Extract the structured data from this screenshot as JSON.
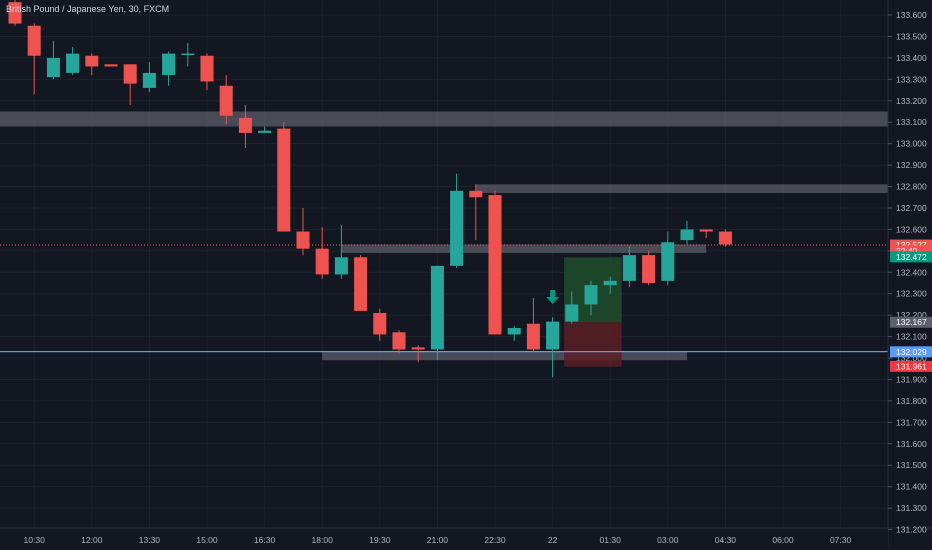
{
  "chart_data": {
    "type": "candlestick",
    "title": "British Pound / Japanese Yen, 30, FXCM",
    "colors": {
      "up": "#26a69a",
      "down": "#ef5350",
      "background": "#131722",
      "grid": "#1e222d",
      "zone": "#5d606b",
      "horizontal_line": "#5b9cf6",
      "current_price_line": "#ef5350",
      "target_zone": "#1e4d2b",
      "stop_zone": "#5c1f26",
      "signal_arrow": "#089981"
    },
    "ylim": [
      131.2,
      133.65
    ],
    "y_ticks": [
      133.6,
      133.5,
      133.4,
      133.3,
      133.2,
      133.1,
      133.0,
      132.9,
      132.8,
      132.7,
      132.6,
      132.5,
      132.4,
      132.3,
      132.2,
      132.1,
      132.0,
      131.9,
      131.8,
      131.7,
      131.6,
      131.5,
      131.4,
      131.3,
      131.2
    ],
    "y_tick_labels": [
      "133.600",
      "133.500",
      "133.400",
      "133.300",
      "133.200",
      "133.100",
      "133.000",
      "132.900",
      "132.800",
      "132.700",
      "132.600",
      "132.500",
      "132.400",
      "132.300",
      "132.200",
      "132.100",
      "132.000",
      "131.900",
      "131.800",
      "131.700",
      "131.600",
      "131.500",
      "131.400",
      "131.300",
      "131.200"
    ],
    "x_ticks": [
      {
        "label": "10:30",
        "index": 1
      },
      {
        "label": "12:00",
        "index": 4
      },
      {
        "label": "13:30",
        "index": 7
      },
      {
        "label": "15:00",
        "index": 10
      },
      {
        "label": "16:30",
        "index": 13
      },
      {
        "label": "18:00",
        "index": 16
      },
      {
        "label": "19:30",
        "index": 19
      },
      {
        "label": "21:00",
        "index": 22
      },
      {
        "label": "22:30",
        "index": 25
      },
      {
        "label": "22",
        "index": 28
      },
      {
        "label": "01:30",
        "index": 31
      },
      {
        "label": "03:00",
        "index": 34
      },
      {
        "label": "04:30",
        "index": 37
      },
      {
        "label": "06:00",
        "index": 40
      },
      {
        "label": "07:30",
        "index": 43
      }
    ],
    "candles": [
      {
        "o": 133.66,
        "h": 133.68,
        "l": 133.55,
        "c": 133.56
      },
      {
        "o": 133.55,
        "h": 133.56,
        "l": 133.23,
        "c": 133.41
      },
      {
        "o": 133.31,
        "h": 133.48,
        "l": 133.3,
        "c": 133.4
      },
      {
        "o": 133.33,
        "h": 133.45,
        "l": 133.32,
        "c": 133.42
      },
      {
        "o": 133.41,
        "h": 133.42,
        "l": 133.32,
        "c": 133.36
      },
      {
        "o": 133.37,
        "h": 133.37,
        "l": 133.36,
        "c": 133.36
      },
      {
        "o": 133.37,
        "h": 133.37,
        "l": 133.18,
        "c": 133.28
      },
      {
        "o": 133.26,
        "h": 133.38,
        "l": 133.24,
        "c": 133.33
      },
      {
        "o": 133.32,
        "h": 133.43,
        "l": 133.27,
        "c": 133.42
      },
      {
        "o": 133.42,
        "h": 133.47,
        "l": 133.36,
        "c": 133.42
      },
      {
        "o": 133.41,
        "h": 133.42,
        "l": 133.25,
        "c": 133.29
      },
      {
        "o": 133.27,
        "h": 133.32,
        "l": 133.09,
        "c": 133.13
      },
      {
        "o": 133.12,
        "h": 133.18,
        "l": 132.98,
        "c": 133.05
      },
      {
        "o": 133.05,
        "h": 133.08,
        "l": 133.05,
        "c": 133.06
      },
      {
        "o": 133.07,
        "h": 133.1,
        "l": 132.6,
        "c": 132.59
      },
      {
        "o": 132.59,
        "h": 132.7,
        "l": 132.48,
        "c": 132.51
      },
      {
        "o": 132.51,
        "h": 132.61,
        "l": 132.37,
        "c": 132.39
      },
      {
        "o": 132.39,
        "h": 132.62,
        "l": 132.37,
        "c": 132.47
      },
      {
        "o": 132.47,
        "h": 132.48,
        "l": 132.22,
        "c": 132.22
      },
      {
        "o": 132.21,
        "h": 132.23,
        "l": 132.08,
        "c": 132.11
      },
      {
        "o": 132.12,
        "h": 132.13,
        "l": 132.02,
        "c": 132.04
      },
      {
        "o": 132.05,
        "h": 132.06,
        "l": 131.98,
        "c": 132.04
      },
      {
        "o": 132.04,
        "h": 132.43,
        "l": 131.99,
        "c": 132.43
      },
      {
        "o": 132.43,
        "h": 132.86,
        "l": 132.42,
        "c": 132.78
      },
      {
        "o": 132.78,
        "h": 132.81,
        "l": 132.55,
        "c": 132.75
      },
      {
        "o": 132.76,
        "h": 132.78,
        "l": 132.11,
        "c": 132.11
      },
      {
        "o": 132.11,
        "h": 132.15,
        "l": 132.08,
        "c": 132.14
      },
      {
        "o": 132.16,
        "h": 132.28,
        "l": 132.03,
        "c": 132.04
      },
      {
        "o": 132.04,
        "h": 132.19,
        "l": 131.91,
        "c": 132.17
      },
      {
        "o": 132.17,
        "h": 132.31,
        "l": 132.16,
        "c": 132.25
      },
      {
        "o": 132.25,
        "h": 132.36,
        "l": 132.2,
        "c": 132.34
      },
      {
        "o": 132.34,
        "h": 132.38,
        "l": 132.3,
        "c": 132.36
      },
      {
        "o": 132.36,
        "h": 132.52,
        "l": 132.33,
        "c": 132.48
      },
      {
        "o": 132.48,
        "h": 132.5,
        "l": 132.34,
        "c": 132.35
      },
      {
        "o": 132.36,
        "h": 132.59,
        "l": 132.34,
        "c": 132.54
      },
      {
        "o": 132.55,
        "h": 132.64,
        "l": 132.53,
        "c": 132.6
      },
      {
        "o": 132.6,
        "h": 132.6,
        "l": 132.56,
        "c": 132.59
      },
      {
        "o": 132.59,
        "h": 132.6,
        "l": 132.52,
        "c": 132.53
      }
    ],
    "zones": [
      {
        "from_index": -1,
        "to_index": 46,
        "top": 133.15,
        "bottom": 133.08
      },
      {
        "from_index": 24,
        "to_index": 46,
        "top": 132.81,
        "bottom": 132.77
      },
      {
        "from_index": 17,
        "to_index": 36,
        "top": 132.53,
        "bottom": 132.49
      },
      {
        "from_index": 16,
        "to_index": 35,
        "top": 132.03,
        "bottom": 131.99
      }
    ],
    "horizontal_line": {
      "value": 132.03
    },
    "current_price_line": {
      "value": 132.527
    },
    "position": {
      "from_index": 28.6,
      "to_index": 31.6,
      "entry": 132.167,
      "target": 132.47,
      "stop": 131.96
    },
    "signal_arrow": {
      "index": 28,
      "value": 132.28
    },
    "price_labels": [
      {
        "label": "132.527",
        "value": 132.527,
        "color": "#ef5350"
      },
      {
        "label": "22:40",
        "value": 132.5,
        "color": "#ef5350"
      },
      {
        "label": "132.472",
        "value": 132.472,
        "color": "#089981"
      },
      {
        "label": "132.167",
        "value": 132.167,
        "color": "#5d606b"
      },
      {
        "label": "132.029",
        "value": 132.029,
        "color": "#5b9cf6"
      },
      {
        "label": "131.961",
        "value": 131.961,
        "color": "#f23645"
      }
    ]
  }
}
